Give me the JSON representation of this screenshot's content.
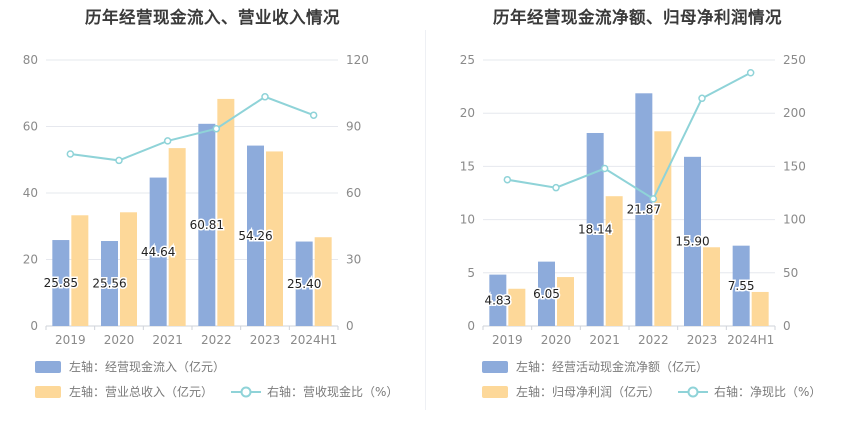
{
  "chart_data": [
    {
      "type": "bar",
      "title": "历年经营现金流入、营业收入情况",
      "categories": [
        "2019",
        "2020",
        "2021",
        "2022",
        "2023",
        "2024H1"
      ],
      "y_left": {
        "min": 0,
        "max": 80,
        "ticks": [
          0,
          20,
          40,
          60,
          80
        ]
      },
      "y_right": {
        "min": 0,
        "max": 120,
        "ticks": [
          0,
          30,
          60,
          90,
          120
        ]
      },
      "series": [
        {
          "name": "左轴：经营现金流入（亿元）",
          "kind": "bar",
          "axis": "left",
          "color": "#8dabdb",
          "values": [
            25.85,
            25.56,
            44.64,
            60.81,
            54.26,
            25.4
          ],
          "labels": [
            "25.85",
            "25.56",
            "44.64",
            "60.81",
            "54.26",
            "25.40"
          ]
        },
        {
          "name": "左轴：营业总收入（亿元）",
          "kind": "bar",
          "axis": "left",
          "color": "#fdd899",
          "values": [
            33.3,
            34.2,
            53.5,
            68.3,
            52.5,
            26.7
          ]
        },
        {
          "name": "右轴：营收现金比（%）",
          "kind": "line",
          "axis": "right",
          "color": "#8fd3d8",
          "values": [
            77.6,
            74.7,
            83.5,
            89.0,
            103.4,
            95.1
          ]
        }
      ],
      "legend_position": "bottom-left",
      "grid": true
    },
    {
      "type": "bar",
      "title": "历年经营现金流净额、归母净利润情况",
      "categories": [
        "2019",
        "2020",
        "2021",
        "2022",
        "2023",
        "2024H1"
      ],
      "y_left": {
        "min": 0,
        "max": 25,
        "ticks": [
          0,
          5,
          10,
          15,
          20,
          25
        ]
      },
      "y_right": {
        "min": 0,
        "max": 250,
        "ticks": [
          0,
          50,
          100,
          150,
          200,
          250
        ]
      },
      "series": [
        {
          "name": "左轴：经营活动现金流净额（亿元）",
          "kind": "bar",
          "axis": "left",
          "color": "#8dabdb",
          "values": [
            4.83,
            6.05,
            18.14,
            21.87,
            15.9,
            7.55
          ],
          "labels": [
            "4.83",
            "6.05",
            "18.14",
            "21.87",
            "15.90",
            "7.55"
          ]
        },
        {
          "name": "左轴：归母净利润（亿元）",
          "kind": "bar",
          "axis": "left",
          "color": "#fdd899",
          "values": [
            3.5,
            4.6,
            12.2,
            18.3,
            7.4,
            3.2
          ]
        },
        {
          "name": "右轴：净现比（%）",
          "kind": "line",
          "axis": "right",
          "color": "#8fd3d8",
          "values": [
            137.5,
            130.0,
            148.0,
            119.5,
            214.0,
            238.0
          ]
        }
      ],
      "legend_position": "bottom-left",
      "grid": true
    }
  ]
}
